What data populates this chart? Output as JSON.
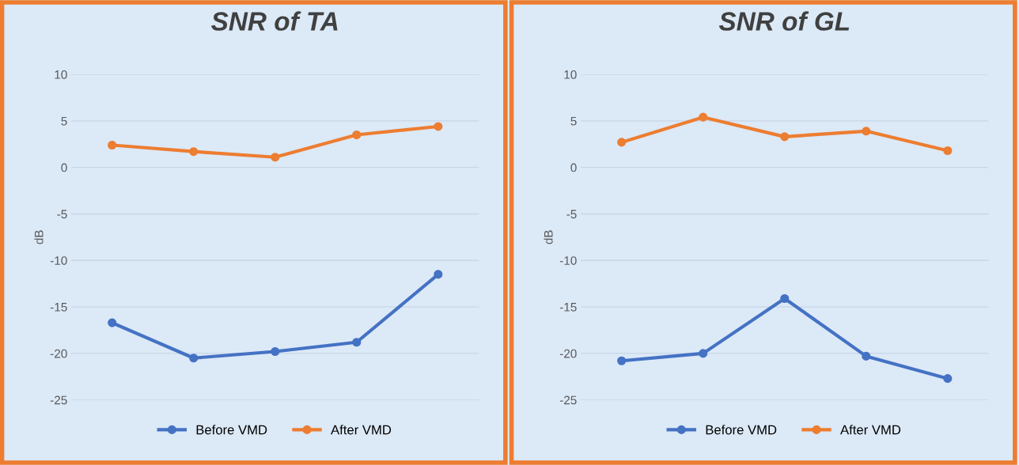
{
  "chart_data": [
    {
      "type": "line",
      "title": "SNR of TA",
      "ylabel": "dB",
      "categories": [
        null,
        null,
        null,
        null,
        null
      ],
      "ylim": [
        -25,
        10
      ],
      "yticks": [
        -25,
        -20,
        -15,
        -10,
        -5,
        0,
        5,
        10
      ],
      "grid": "y",
      "legend": "bottom",
      "marker": "circle",
      "line_style": "solid",
      "series": [
        {
          "name": "Before VMD",
          "color": "#4472c4",
          "values": [
            -16.7,
            -20.5,
            -19.8,
            -18.8,
            -11.5
          ]
        },
        {
          "name": "After VMD",
          "color": "#ed7d31",
          "values": [
            2.4,
            1.7,
            1.1,
            3.5,
            4.4
          ]
        }
      ]
    },
    {
      "type": "line",
      "title": "SNR of GL",
      "ylabel": "dB",
      "categories": [
        null,
        null,
        null,
        null,
        null
      ],
      "ylim": [
        -25,
        10
      ],
      "yticks": [
        -25,
        -20,
        -15,
        -10,
        -5,
        0,
        5,
        10
      ],
      "grid": "y",
      "legend": "bottom",
      "marker": "circle",
      "line_style": "solid",
      "series": [
        {
          "name": "Before VMD",
          "color": "#4472c4",
          "values": [
            -20.8,
            -20.0,
            -14.1,
            -20.3,
            -22.7
          ]
        },
        {
          "name": "After VMD",
          "color": "#ed7d31",
          "values": [
            2.7,
            5.4,
            3.3,
            3.9,
            1.8
          ]
        }
      ]
    }
  ]
}
